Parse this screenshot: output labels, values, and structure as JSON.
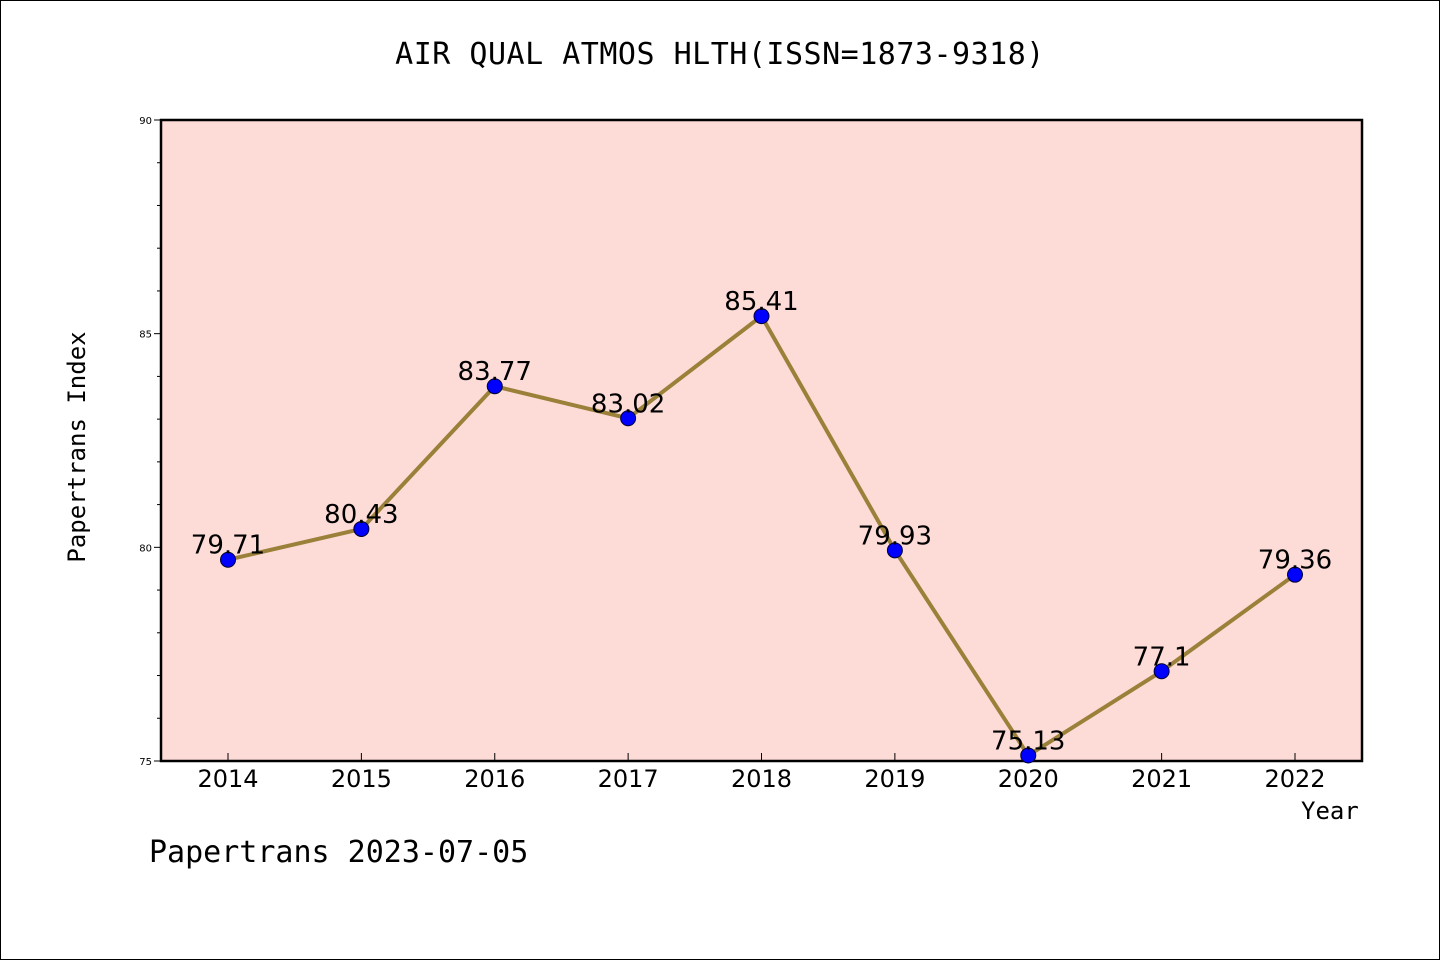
{
  "chart_data": {
    "type": "line",
    "title": "AIR QUAL ATMOS HLTH(ISSN=1873-9318)",
    "xlabel": "Year",
    "ylabel": "Papertrans Index",
    "x": [
      "2014",
      "2015",
      "2016",
      "2017",
      "2018",
      "2019",
      "2020",
      "2021",
      "2022"
    ],
    "series": [
      {
        "values": [
          79.71,
          80.43,
          83.77,
          83.02,
          85.41,
          79.93,
          75.13,
          77.1,
          79.36
        ],
        "labels": [
          "79.71",
          "80.43",
          "83.77",
          "83.02",
          "85.41",
          "79.93",
          "75.13",
          "77.1",
          "79.36"
        ]
      }
    ],
    "ylim": [
      75,
      90
    ],
    "yticks": [
      "75",
      "80",
      "85",
      "90"
    ],
    "grid": false,
    "colors": {
      "plot_background": "#fddbd7",
      "line": "#9a8038",
      "marker": "#0000ff"
    }
  },
  "footer": "Papertrans 2023-07-05"
}
